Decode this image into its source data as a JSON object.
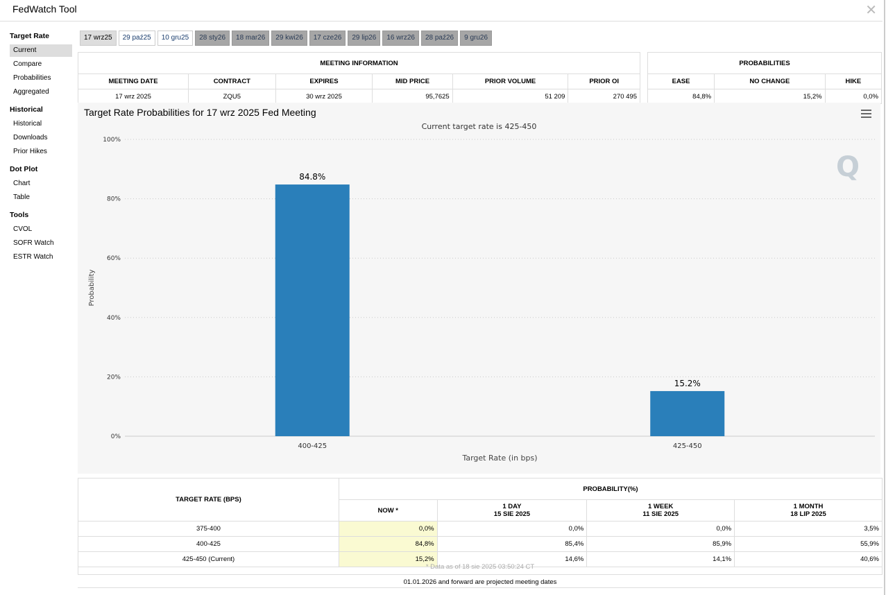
{
  "app": {
    "title": "FedWatch Tool"
  },
  "sidebar": {
    "groups": [
      {
        "title": "Target Rate",
        "items": [
          "Current",
          "Compare",
          "Probabilities",
          "Aggregated"
        ]
      },
      {
        "title": "Historical",
        "items": [
          "Historical",
          "Downloads",
          "Prior Hikes"
        ]
      },
      {
        "title": "Dot Plot",
        "items": [
          "Chart",
          "Table"
        ]
      },
      {
        "title": "Tools",
        "items": [
          "CVOL",
          "SOFR Watch",
          "ESTR Watch"
        ]
      }
    ],
    "active": "Current"
  },
  "tabs": [
    {
      "label": "17 wrz25",
      "state": "selected"
    },
    {
      "label": "29 paź25",
      "state": "normal"
    },
    {
      "label": "10 gru25",
      "state": "normal"
    },
    {
      "label": "28 sty26",
      "state": "future"
    },
    {
      "label": "18 mar26",
      "state": "future"
    },
    {
      "label": "29 kwi26",
      "state": "future"
    },
    {
      "label": "17 cze26",
      "state": "future"
    },
    {
      "label": "29 lip26",
      "state": "future"
    },
    {
      "label": "16 wrz26",
      "state": "future"
    },
    {
      "label": "28 paź26",
      "state": "future"
    },
    {
      "label": "9 gru26",
      "state": "future"
    }
  ],
  "meeting_info": {
    "header": "MEETING INFORMATION",
    "columns": [
      "MEETING DATE",
      "CONTRACT",
      "EXPIRES",
      "MID PRICE",
      "PRIOR VOLUME",
      "PRIOR OI"
    ],
    "row": {
      "meeting_date": "17 wrz 2025",
      "contract": "ZQU5",
      "expires": "30 wrz 2025",
      "mid_price": "95,7625",
      "prior_volume": "51 209",
      "prior_oi": "270 495"
    }
  },
  "probabilities": {
    "header": "PROBABILITIES",
    "columns": [
      "EASE",
      "NO CHANGE",
      "HIKE"
    ],
    "row": {
      "ease": "84,8%",
      "no_change": "15,2%",
      "hike": "0,0%"
    }
  },
  "chart_data": {
    "type": "bar",
    "title": "Target Rate Probabilities for 17 wrz 2025 Fed Meeting",
    "subtitle": "Current target rate is 425-450",
    "xlabel": "Target Rate (in bps)",
    "ylabel": "Probability",
    "categories": [
      "400-425",
      "425-450"
    ],
    "values": [
      84.8,
      15.2
    ],
    "data_labels": [
      "84.8%",
      "15.2%"
    ],
    "yticks": [
      "0%",
      "20%",
      "40%",
      "60%",
      "80%",
      "100%"
    ],
    "ylim": [
      0,
      100
    ],
    "grid": true,
    "bar_color": "#2a7fba"
  },
  "prob_table": {
    "header_left": "TARGET RATE (BPS)",
    "header_right": "PROBABILITY(%)",
    "cols": [
      {
        "l1": "NOW *",
        "l2": ""
      },
      {
        "l1": "1 DAY",
        "l2": "15 SIE 2025"
      },
      {
        "l1": "1 WEEK",
        "l2": "11 SIE 2025"
      },
      {
        "l1": "1 MONTH",
        "l2": "18 LIP 2025"
      }
    ],
    "rows": [
      {
        "rate": "375-400",
        "v": [
          "0,0%",
          "0,0%",
          "0,0%",
          "3,5%"
        ]
      },
      {
        "rate": "400-425",
        "v": [
          "84,8%",
          "85,4%",
          "85,9%",
          "55,9%"
        ]
      },
      {
        "rate": "425-450 (Current)",
        "v": [
          "15,2%",
          "14,6%",
          "14,1%",
          "40,6%"
        ]
      }
    ],
    "footnote": "* Data as of 18 sie 2025 03:50:24 CT"
  },
  "projected_note": "01.01.2026 and forward are projected meeting dates"
}
